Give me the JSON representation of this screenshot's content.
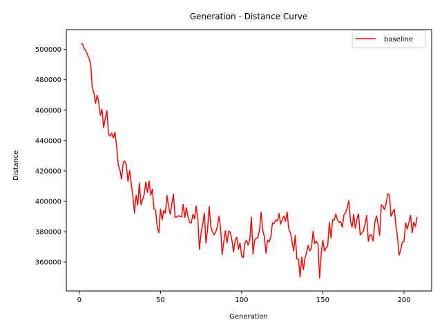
{
  "chart_data": {
    "type": "line",
    "title": "Generation - Distance Curve",
    "xlabel": "Generation",
    "ylabel": "Distance",
    "xlim": [
      -8,
      217
    ],
    "ylim": [
      341000,
      513000
    ],
    "xticks": [
      0,
      50,
      100,
      150,
      200
    ],
    "yticks": [
      360000,
      380000,
      400000,
      420000,
      440000,
      460000,
      480000,
      500000
    ],
    "grid": false,
    "legend_position": "top-right",
    "series": [
      {
        "name": "baseline",
        "color": "#ff0000",
        "x": [
          1,
          2,
          3,
          4,
          5,
          6,
          7,
          8,
          9,
          10,
          11,
          12,
          13,
          14,
          15,
          16,
          17,
          18,
          19,
          20,
          21,
          22,
          23,
          24,
          25,
          26,
          27,
          28,
          29,
          30,
          31,
          32,
          33,
          34,
          35,
          36,
          37,
          38,
          39,
          40,
          41,
          42,
          43,
          44,
          45,
          46,
          47,
          48,
          49,
          50,
          51,
          52,
          53,
          54,
          55,
          56,
          57,
          58,
          59,
          60,
          61,
          62,
          63,
          64,
          65,
          66,
          67,
          68,
          69,
          70,
          71,
          72,
          73,
          74,
          75,
          76,
          77,
          78,
          79,
          80,
          81,
          82,
          83,
          84,
          85,
          86,
          87,
          88,
          89,
          90,
          91,
          92,
          93,
          94,
          95,
          96,
          97,
          98,
          99,
          100,
          101,
          102,
          103,
          104,
          105,
          106,
          107,
          108,
          109,
          110,
          111,
          112,
          113,
          114,
          115,
          116,
          117,
          118,
          119,
          120,
          121,
          122,
          123,
          124,
          125,
          126,
          127,
          128,
          129,
          130,
          131,
          132,
          133,
          134,
          135,
          136,
          137,
          138,
          139,
          140,
          141,
          142,
          143,
          144,
          145,
          146,
          147,
          148,
          149,
          150,
          151,
          152,
          153,
          154,
          155,
          156,
          157,
          158,
          159,
          160,
          161,
          162,
          163,
          164,
          165,
          166,
          167,
          168,
          169,
          170,
          171,
          172,
          173,
          174,
          175,
          176,
          177,
          178,
          179,
          180,
          181,
          182,
          183,
          184,
          185,
          186,
          187,
          188,
          189,
          190,
          191,
          192,
          193,
          194,
          195,
          196,
          197,
          198,
          199,
          200,
          201,
          202,
          203,
          204,
          205,
          206,
          207,
          208
        ],
        "values": [
          503800,
          503500,
          500500,
          499300,
          496500,
          494100,
          490300,
          475000,
          471600,
          464400,
          469900,
          465100,
          456600,
          460600,
          448500,
          454800,
          459700,
          444300,
          442900,
          444900,
          441700,
          445500,
          436000,
          424000,
          420900,
          414500,
          425200,
          426500,
          423800,
          413100,
          420300,
          411700,
          403100,
          392400,
          404100,
          397500,
          412100,
          397700,
          401000,
          404800,
          412700,
          405900,
          413400,
          404100,
          408000,
          395000,
          394200,
          383200,
          379300,
          394900,
          387800,
          393900,
          392200,
          403900,
          396700,
          391500,
          398500,
          404800,
          389400,
          389800,
          390500,
          390200,
          389600,
          398100,
          389300,
          395800,
          389600,
          386100,
          385800,
          391600,
          388500,
          397000,
          388100,
          368400,
          379200,
          384700,
          392400,
          372600,
          381500,
          396600,
          383500,
          380100,
          377900,
          379800,
          383300,
          390200,
          382800,
          364900,
          373500,
          380800,
          372600,
          380400,
          379800,
          374400,
          366700,
          374400,
          376400,
          368400,
          372700,
          364100,
          362900,
          372800,
          374400,
          371300,
          374700,
          389600,
          365300,
          374600,
          375700,
          376200,
          381700,
          392900,
          381000,
          376600,
          365900,
          374500,
          373300,
          377100,
          386000,
          385400,
          387800,
          387100,
          392000,
          385100,
          387900,
          390400,
          386900,
          393100,
          381800,
          379500,
          373900,
          367300,
          377700,
          362100,
          362000,
          350100,
          363400,
          355000,
          362700,
          366300,
          371000,
          367400,
          369300,
          380400,
          372200,
          373800,
          371800,
          349500,
          365600,
          374400,
          367300,
          369400,
          370600,
          386200,
          375800,
          387800,
          387700,
          391700,
          387900,
          386100,
          386700,
          383000,
          391100,
          392600,
          395500,
          400500,
          386800,
          383100,
          391400,
          382300,
          388300,
          391800,
          377800,
          379400,
          380600,
          385200,
          390700,
          373700,
          378000,
          377700,
          373900,
          386300,
          390400,
          385200,
          377700,
          397700,
          396900,
          394400,
          398900,
          405000,
          404000,
          390100,
          392700,
          394800,
          384000,
          376100,
          364600,
          368400,
          373100,
          373700,
          385800,
          381800,
          386100,
          390900,
          379300,
          386400,
          383300,
          389600
        ]
      }
    ]
  }
}
